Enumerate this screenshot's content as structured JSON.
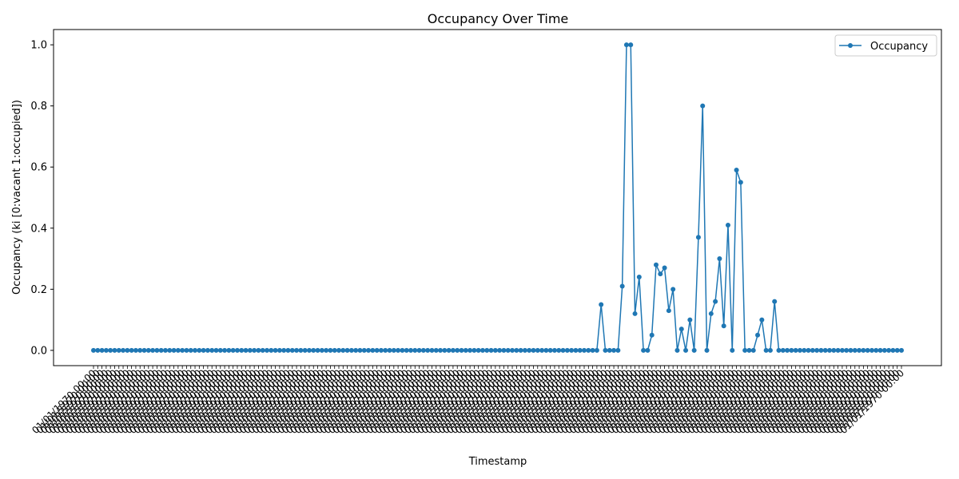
{
  "chart_data": {
    "type": "line",
    "title": "Occupancy Over Time",
    "xlabel": "Timestamp",
    "ylabel": "Occupancy (ki [0:vacant 1:occupied])",
    "ylim": [
      -0.05,
      1.05
    ],
    "yticks": [
      "0.0",
      "0.2",
      "0.4",
      "0.6",
      "0.8",
      "1.0"
    ],
    "ytick_values": [
      0.0,
      0.2,
      0.4,
      0.6,
      0.8,
      1.0
    ],
    "grid": false,
    "legend_position": "top-right",
    "x_tick_label_text": "01/01/1970 00:00",
    "series": [
      {
        "name": "Occupancy",
        "color": "#1f77b4",
        "marker": "circle",
        "values": [
          0,
          0,
          0,
          0,
          0,
          0,
          0,
          0,
          0,
          0,
          0,
          0,
          0,
          0,
          0,
          0,
          0,
          0,
          0,
          0,
          0,
          0,
          0,
          0,
          0,
          0,
          0,
          0,
          0,
          0,
          0,
          0,
          0,
          0,
          0,
          0,
          0,
          0,
          0,
          0,
          0,
          0,
          0,
          0,
          0,
          0,
          0,
          0,
          0,
          0,
          0,
          0,
          0,
          0,
          0,
          0,
          0,
          0,
          0,
          0,
          0,
          0,
          0,
          0,
          0,
          0,
          0,
          0,
          0,
          0,
          0,
          0,
          0,
          0,
          0,
          0,
          0,
          0,
          0,
          0,
          0,
          0,
          0,
          0,
          0,
          0,
          0,
          0,
          0,
          0,
          0,
          0,
          0,
          0,
          0,
          0,
          0,
          0,
          0,
          0,
          0,
          0,
          0,
          0,
          0,
          0,
          0,
          0,
          0,
          0,
          0,
          0,
          0,
          0,
          0,
          0,
          0,
          0,
          0,
          0,
          0.15,
          0,
          0,
          0,
          0,
          0.21,
          1.0,
          1.0,
          0.12,
          0.24,
          0,
          0,
          0.05,
          0.28,
          0.25,
          0.27,
          0.13,
          0.2,
          0,
          0.07,
          0,
          0.1,
          0,
          0.37,
          0.8,
          0,
          0.12,
          0.16,
          0.3,
          0.08,
          0.41,
          0,
          0.59,
          0.55,
          0,
          0,
          0,
          0.05,
          0.1,
          0,
          0,
          0.16,
          0,
          0,
          0,
          0,
          0,
          0,
          0,
          0,
          0,
          0,
          0,
          0,
          0,
          0,
          0,
          0,
          0,
          0,
          0,
          0,
          0,
          0,
          0,
          0,
          0,
          0,
          0,
          0,
          0,
          0
        ]
      }
    ]
  }
}
